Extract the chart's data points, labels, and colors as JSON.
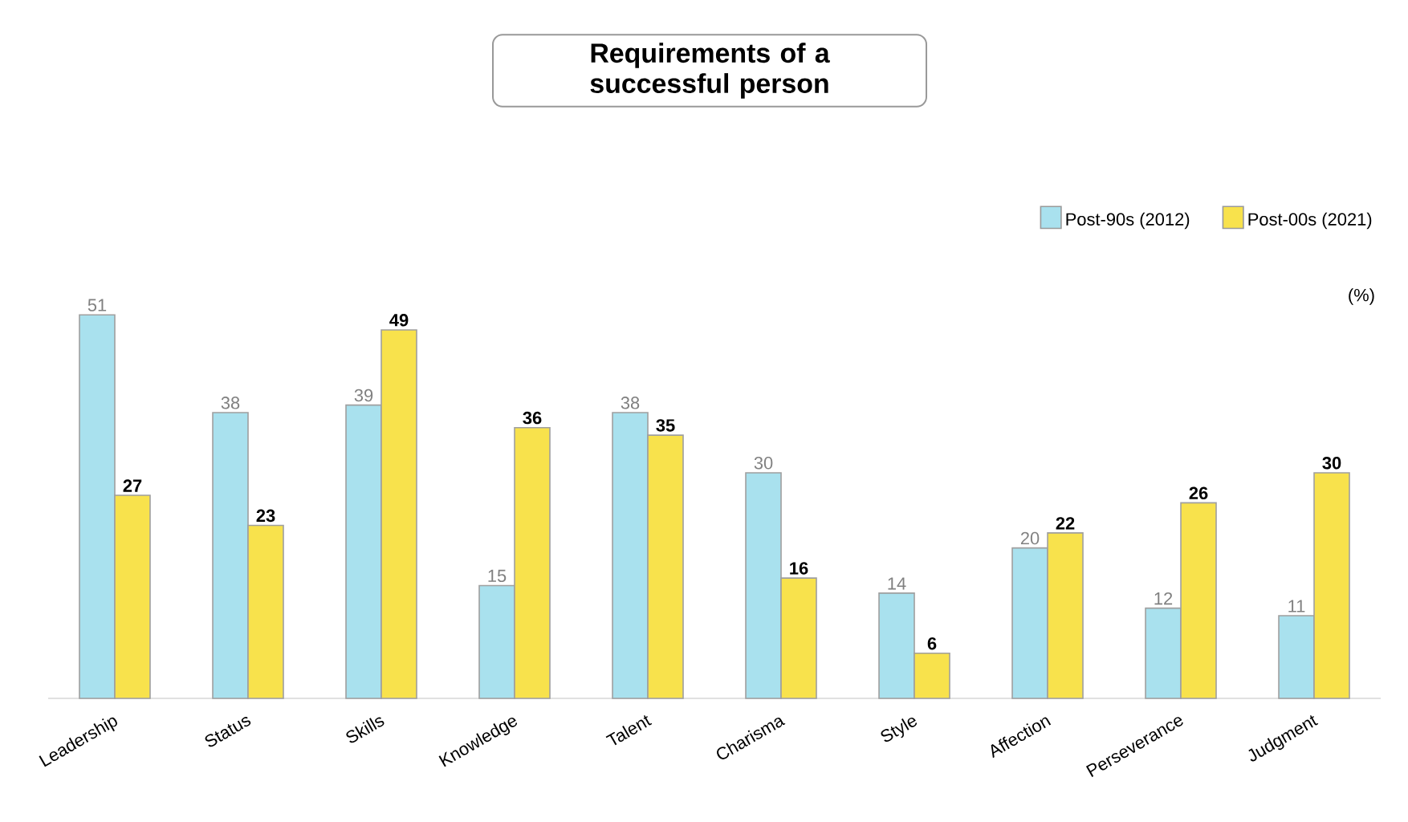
{
  "chart_data": {
    "type": "bar",
    "title": "Requirements of a successful person",
    "ylabel": "(%)",
    "categories": [
      "Leadership",
      "Status",
      "Skills",
      "Knowledge",
      "Talent",
      "Charisma",
      "Style",
      "Affection",
      "Perseverance",
      "Judgment"
    ],
    "series": [
      {
        "name": "Post-90s (2012)",
        "color": "#a9e1ee",
        "values": [
          51,
          38,
          39,
          15,
          38,
          30,
          14,
          20,
          12,
          11
        ]
      },
      {
        "name": "Post-00s (2021)",
        "color": "#f8e24c",
        "values": [
          27,
          23,
          49,
          36,
          35,
          16,
          6,
          22,
          26,
          30
        ]
      }
    ],
    "data_labels": true,
    "legend": "top right",
    "grid": false
  }
}
